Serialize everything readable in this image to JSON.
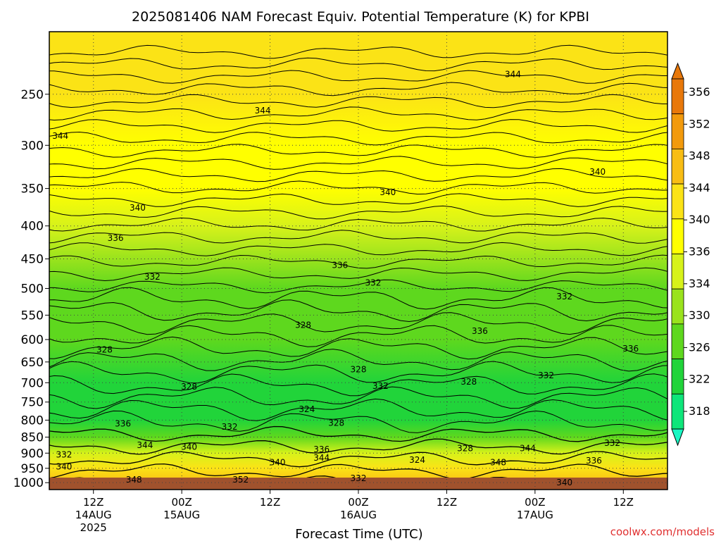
{
  "chart_data": {
    "type": "heatmap",
    "title": "2025081406 NAM Forecast Equiv. Potential Temperature (K) for KPBI",
    "xlabel": "Forecast Time (UTC)",
    "ylabel": "",
    "y_axis": {
      "scale": "log",
      "reversed": true,
      "range": [
        1025,
        200
      ],
      "ticks": [
        250,
        300,
        350,
        400,
        450,
        500,
        550,
        600,
        650,
        700,
        750,
        800,
        850,
        900,
        950,
        1000
      ]
    },
    "x_axis": {
      "range_hours": [
        6,
        90
      ],
      "ticks": [
        {
          "hour": 12,
          "label": "12Z",
          "date": "14AUG",
          "year": "2025"
        },
        {
          "hour": 24,
          "label": "00Z",
          "date": "15AUG",
          "year": ""
        },
        {
          "hour": 36,
          "label": "12Z",
          "date": "",
          "year": ""
        },
        {
          "hour": 48,
          "label": "00Z",
          "date": "16AUG",
          "year": ""
        },
        {
          "hour": 60,
          "label": "12Z",
          "date": "",
          "year": ""
        },
        {
          "hour": 72,
          "label": "00Z",
          "date": "17AUG",
          "year": ""
        },
        {
          "hour": 84,
          "label": "12Z",
          "date": "",
          "year": ""
        }
      ]
    },
    "grid": true,
    "colorbar": {
      "placement": "right",
      "levels": [
        356,
        352,
        348,
        344,
        340,
        336,
        334,
        330,
        326,
        322,
        318
      ],
      "colors": [
        "#e8780a",
        "#f29a0c",
        "#f8bd14",
        "#fbe316",
        "#ffff00",
        "#d7f21a",
        "#9ae31d",
        "#5ed81e",
        "#21d43a",
        "#0ee67a",
        "#19f7c3"
      ]
    },
    "bands": [
      {
        "pressure": 250,
        "value": 345
      },
      {
        "pressure": 300,
        "value": 342
      },
      {
        "pressure": 350,
        "value": 340
      },
      {
        "pressure": 400,
        "value": 338
      },
      {
        "pressure": 450,
        "value": 335
      },
      {
        "pressure": 500,
        "value": 333
      },
      {
        "pressure": 600,
        "value": 330
      },
      {
        "pressure": 700,
        "value": 329
      },
      {
        "pressure": 800,
        "value": 328
      },
      {
        "pressure": 850,
        "value": 333
      },
      {
        "pressure": 900,
        "value": 338
      },
      {
        "pressure": 950,
        "value": 346
      },
      {
        "pressure": 1000,
        "value": 349
      }
    ],
    "contour_labels": [
      {
        "text": "344",
        "hour": 7.5,
        "pressure": 290
      },
      {
        "text": "344",
        "hour": 35,
        "pressure": 265
      },
      {
        "text": "344",
        "hour": 69,
        "pressure": 233
      },
      {
        "text": "340",
        "hour": 18,
        "pressure": 375
      },
      {
        "text": "340",
        "hour": 52,
        "pressure": 355
      },
      {
        "text": "340",
        "hour": 80.5,
        "pressure": 330
      },
      {
        "text": "336",
        "hour": 15,
        "pressure": 418
      },
      {
        "text": "336",
        "hour": 45.5,
        "pressure": 460
      },
      {
        "text": "336",
        "hour": 64.5,
        "pressure": 582
      },
      {
        "text": "336",
        "hour": 85,
        "pressure": 620
      },
      {
        "text": "332",
        "hour": 20,
        "pressure": 480
      },
      {
        "text": "332",
        "hour": 50,
        "pressure": 490
      },
      {
        "text": "332",
        "hour": 76,
        "pressure": 515
      },
      {
        "text": "332",
        "hour": 73.5,
        "pressure": 682
      },
      {
        "text": "332",
        "hour": 51,
        "pressure": 708
      },
      {
        "text": "332",
        "hour": 30.5,
        "pressure": 820
      },
      {
        "text": "332",
        "hour": 82.5,
        "pressure": 868
      },
      {
        "text": "332",
        "hour": 8,
        "pressure": 905
      },
      {
        "text": "332",
        "hour": 48,
        "pressure": 985
      },
      {
        "text": "328",
        "hour": 13.5,
        "pressure": 622
      },
      {
        "text": "328",
        "hour": 40.5,
        "pressure": 570
      },
      {
        "text": "328",
        "hour": 48,
        "pressure": 668
      },
      {
        "text": "328",
        "hour": 63,
        "pressure": 698
      },
      {
        "text": "328",
        "hour": 25,
        "pressure": 710
      },
      {
        "text": "328",
        "hour": 45,
        "pressure": 808
      },
      {
        "text": "328",
        "hour": 62.5,
        "pressure": 885
      },
      {
        "text": "324",
        "hour": 41,
        "pressure": 770
      },
      {
        "text": "324",
        "hour": 56,
        "pressure": 922
      },
      {
        "text": "336",
        "hour": 16,
        "pressure": 810
      },
      {
        "text": "336",
        "hour": 43,
        "pressure": 888
      },
      {
        "text": "336",
        "hour": 80,
        "pressure": 925
      },
      {
        "text": "344",
        "hour": 19,
        "pressure": 875
      },
      {
        "text": "344",
        "hour": 43,
        "pressure": 915
      },
      {
        "text": "344",
        "hour": 71,
        "pressure": 885
      },
      {
        "text": "340",
        "hour": 8,
        "pressure": 945
      },
      {
        "text": "340",
        "hour": 25,
        "pressure": 880
      },
      {
        "text": "340",
        "hour": 37,
        "pressure": 930
      },
      {
        "text": "340",
        "hour": 76,
        "pressure": 1000
      },
      {
        "text": "348",
        "hour": 17.5,
        "pressure": 990
      },
      {
        "text": "348",
        "hour": 67,
        "pressure": 930
      },
      {
        "text": "352",
        "hour": 32,
        "pressure": 990
      }
    ]
  },
  "credit": "coolwx.com/models"
}
